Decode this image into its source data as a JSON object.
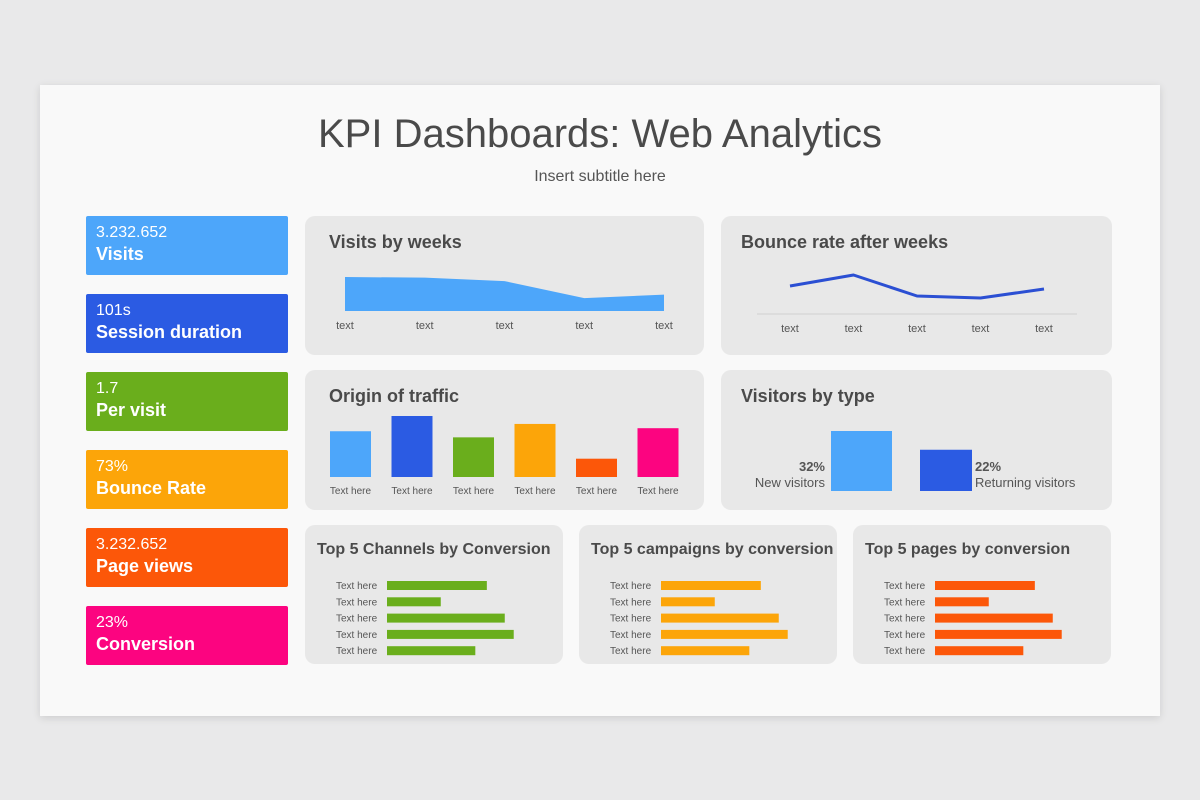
{
  "title": "KPI Dashboards: Web Analytics",
  "subtitle": "Insert subtitle here",
  "kpis": [
    {
      "value": "3.232.652",
      "label": "Visits",
      "color": "#4da6fa"
    },
    {
      "value": "101s",
      "label": "Session duration",
      "color": "#2b5be3"
    },
    {
      "value": "1.7",
      "label": "Per visit",
      "color": "#6aae1c"
    },
    {
      "value": "73%",
      "label": "Bounce Rate",
      "color": "#fca509"
    },
    {
      "value": "3.232.652",
      "label": "Page views",
      "color": "#fc5709"
    },
    {
      "value": "23%",
      "label": "Conversion",
      "color": "#fc0480"
    }
  ],
  "chart_data": [
    {
      "id": "visits",
      "type": "area",
      "title": "Visits by weeks",
      "categories": [
        "text",
        "text",
        "text",
        "text",
        "text"
      ],
      "values": [
        100,
        98,
        88,
        38,
        48
      ],
      "ylim": [
        0,
        100
      ],
      "color": "#4da6fa"
    },
    {
      "id": "bounce",
      "type": "line",
      "title": "Bounce rate after weeks",
      "categories": [
        "text",
        "text",
        "text",
        "text",
        "text"
      ],
      "values": [
        50,
        72,
        30,
        26,
        44
      ],
      "ylim": [
        0,
        100
      ],
      "color": "#2b4fd3"
    },
    {
      "id": "origin",
      "type": "bar",
      "title": "Origin of traffic",
      "categories": [
        "Text here",
        "Text here",
        "Text here",
        "Text here",
        "Text here",
        "Text here"
      ],
      "values": [
        75,
        100,
        65,
        87,
        30,
        80
      ],
      "ylim": [
        0,
        100
      ],
      "colors": [
        "#4da6fa",
        "#2b5be3",
        "#6aae1c",
        "#fca509",
        "#fc5709",
        "#fc0480"
      ]
    },
    {
      "id": "visitors",
      "type": "bar",
      "title": "Visitors by type",
      "categories": [
        "New visitors",
        "Returning visitors"
      ],
      "values": [
        32,
        22
      ],
      "value_labels": [
        "32%",
        "22%"
      ],
      "ylim": [
        0,
        32
      ],
      "colors": [
        "#4da6fa",
        "#2b5be3"
      ]
    },
    {
      "id": "channels",
      "type": "bar",
      "orientation": "horizontal",
      "title": "Top 5 Channels by Conversion",
      "categories": [
        "Text here",
        "Text here",
        "Text here",
        "Text here",
        "Text here"
      ],
      "values": [
        78,
        42,
        92,
        99,
        69
      ],
      "xlim": [
        0,
        100
      ],
      "color": "#6aae1c"
    },
    {
      "id": "campaigns",
      "type": "bar",
      "orientation": "horizontal",
      "title": "Top 5 campaigns by conversion",
      "categories": [
        "Text here",
        "Text here",
        "Text here",
        "Text here",
        "Text here"
      ],
      "values": [
        78,
        42,
        92,
        99,
        69
      ],
      "xlim": [
        0,
        100
      ],
      "color": "#fca509"
    },
    {
      "id": "pages",
      "type": "bar",
      "orientation": "horizontal",
      "title": "Top 5 pages by conversion",
      "categories": [
        "Text here",
        "Text here",
        "Text here",
        "Text here",
        "Text here"
      ],
      "values": [
        78,
        42,
        92,
        99,
        69
      ],
      "xlim": [
        0,
        100
      ],
      "color": "#fc5709"
    }
  ]
}
